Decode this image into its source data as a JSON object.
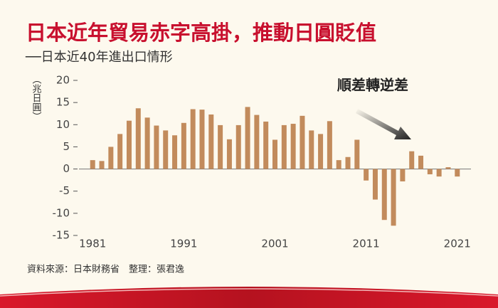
{
  "chart_data": {
    "type": "bar",
    "title": "日本近年貿易赤字高掛，推動日圓貶值",
    "subtitle": "──日本近40年進出口情形",
    "y_label": "（兆日圓）",
    "annotation": "順差轉逆差",
    "source": "資料來源：日本財務省　整理：張君逸",
    "x": [
      1981,
      1982,
      1983,
      1984,
      1985,
      1986,
      1987,
      1988,
      1989,
      1990,
      1991,
      1992,
      1993,
      1994,
      1995,
      1996,
      1997,
      1998,
      1999,
      2000,
      2001,
      2002,
      2003,
      2004,
      2005,
      2006,
      2007,
      2008,
      2009,
      2010,
      2011,
      2012,
      2013,
      2014,
      2015,
      2016,
      2017,
      2018,
      2019,
      2020,
      2021
    ],
    "values": [
      2.0,
      1.8,
      5.0,
      7.9,
      10.9,
      13.7,
      11.6,
      9.8,
      8.7,
      7.6,
      10.4,
      13.5,
      13.4,
      12.3,
      9.9,
      6.7,
      9.9,
      14.0,
      12.2,
      10.7,
      6.6,
      9.9,
      10.2,
      12.0,
      8.7,
      7.9,
      10.8,
      2.0,
      2.7,
      6.6,
      -2.6,
      -6.9,
      -11.5,
      -12.8,
      -2.8,
      4.0,
      3.0,
      -1.2,
      -1.7,
      0.4,
      -1.7
    ],
    "color": "#c28b5c",
    "xlim": [
      1979.5,
      2022.5
    ],
    "xticks": [
      1981,
      1991,
      2001,
      2011,
      2021
    ],
    "ylim": [
      -15,
      20
    ],
    "yticks": [
      -15,
      -10,
      -5,
      0,
      5,
      10,
      15,
      20
    ]
  }
}
